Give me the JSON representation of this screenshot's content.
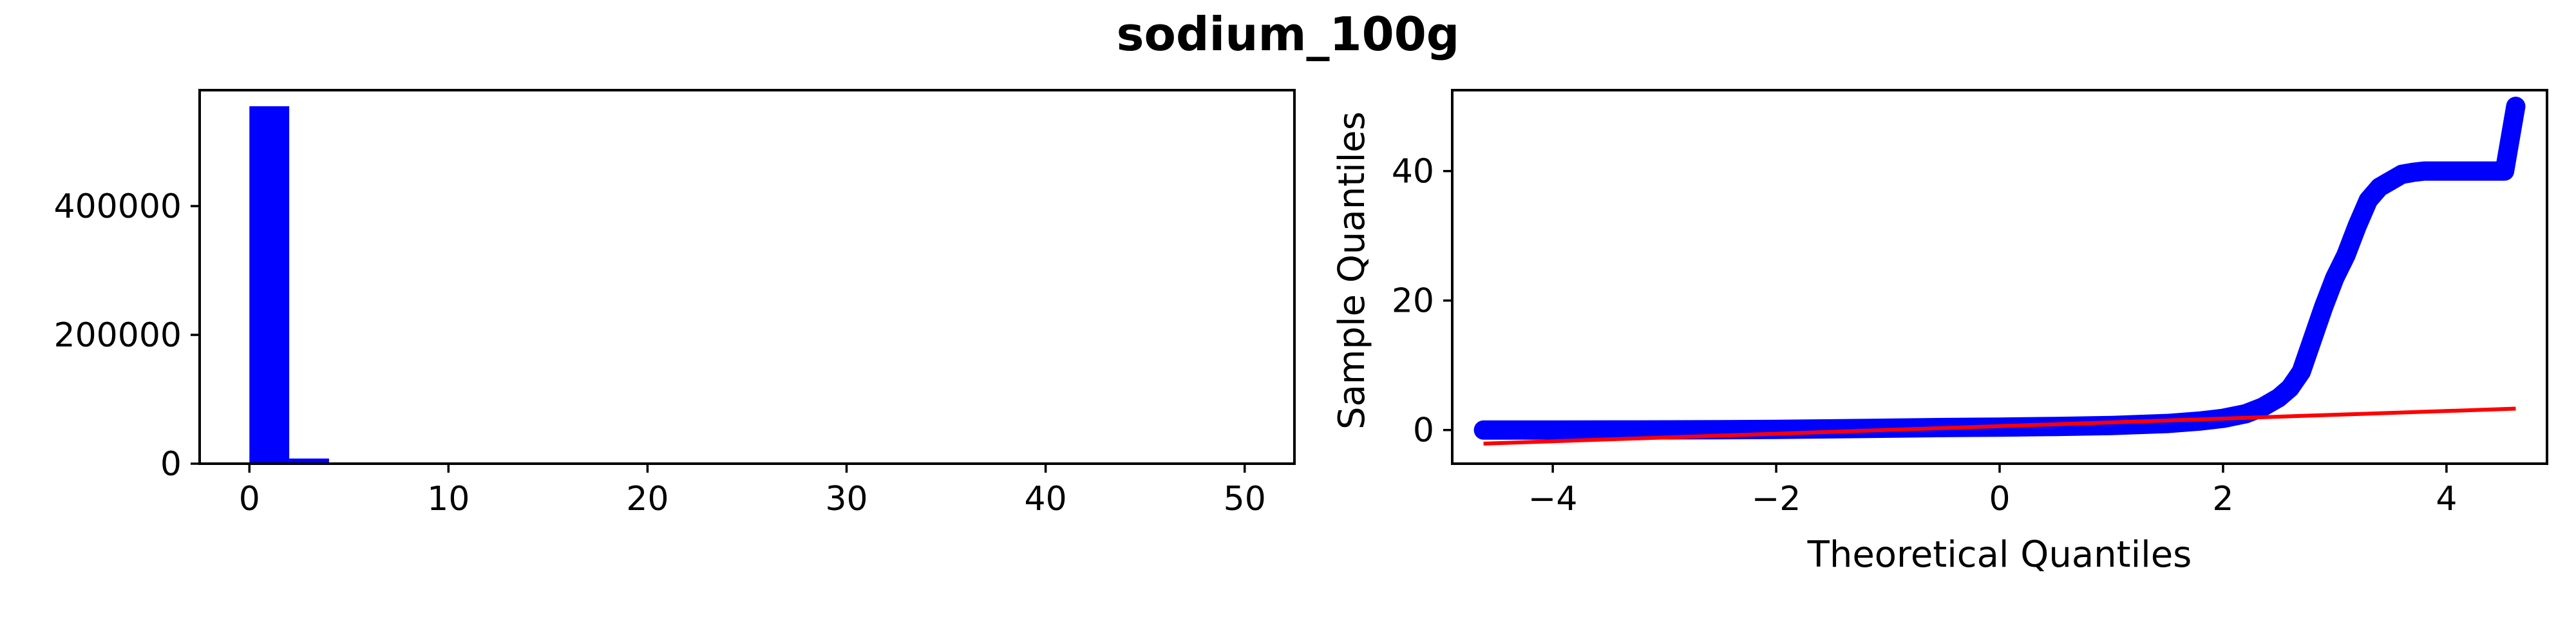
{
  "figure_title": "sodium_100g",
  "colors": {
    "marks": "#0000ff",
    "fit_line": "#ff0000",
    "axes": "#000000",
    "background": "#ffffff"
  },
  "chart_data": [
    {
      "type": "bar",
      "subtype": "histogram",
      "title": "",
      "xlabel": "",
      "ylabel": "",
      "xlim": [
        -2.5,
        52.5
      ],
      "ylim": [
        0,
        580000
      ],
      "xticks": [
        0,
        10,
        20,
        30,
        40,
        50
      ],
      "yticks": [
        0,
        200000,
        400000
      ],
      "bin_edges": [
        0,
        2,
        4,
        6,
        8,
        10,
        12,
        14,
        16,
        18,
        20,
        22,
        24,
        26,
        28,
        30,
        32,
        34,
        36,
        38,
        40,
        42,
        44,
        46,
        48,
        50
      ],
      "values": [
        555000,
        8000,
        1500,
        600,
        300,
        200,
        150,
        120,
        100,
        80,
        60,
        50,
        50,
        40,
        40,
        30,
        30,
        30,
        40,
        60,
        150,
        20,
        10,
        5,
        5
      ],
      "grid": false,
      "legend": "none"
    },
    {
      "type": "scatter",
      "subtype": "qq-plot",
      "title": "",
      "xlabel": "Theoretical Quantiles",
      "ylabel": "Sample Quantiles",
      "xlim": [
        -4.9,
        4.9
      ],
      "ylim": [
        -5.2,
        52.5
      ],
      "xticks": [
        -4,
        -2,
        0,
        2,
        4
      ],
      "xtick_labels": [
        "−4",
        "−2",
        "0",
        "2",
        "4"
      ],
      "yticks": [
        0,
        20,
        40
      ],
      "marker": "open-circle",
      "points": [
        [
          -4.62,
          0.0
        ],
        [
          -4.45,
          0.0
        ],
        [
          -4.38,
          0.0
        ],
        [
          -4.3,
          0.0
        ],
        [
          -4.2,
          0.0
        ],
        [
          -4.0,
          0.0
        ],
        [
          -3.5,
          0.01
        ],
        [
          -3.0,
          0.02
        ],
        [
          -2.5,
          0.05
        ],
        [
          -2.0,
          0.1
        ],
        [
          -1.5,
          0.18
        ],
        [
          -1.0,
          0.28
        ],
        [
          -0.5,
          0.38
        ],
        [
          0.0,
          0.45
        ],
        [
          0.5,
          0.55
        ],
        [
          1.0,
          0.7
        ],
        [
          1.5,
          1.0
        ],
        [
          1.8,
          1.4
        ],
        [
          2.0,
          1.8
        ],
        [
          2.2,
          2.5
        ],
        [
          2.35,
          3.5
        ],
        [
          2.5,
          5.0
        ],
        [
          2.6,
          6.5
        ],
        [
          2.7,
          9.0
        ],
        [
          2.8,
          14.0
        ],
        [
          2.9,
          19.0
        ],
        [
          3.0,
          23.5
        ],
        [
          3.1,
          27.0
        ],
        [
          3.2,
          31.5
        ],
        [
          3.3,
          35.5
        ],
        [
          3.4,
          37.5
        ],
        [
          3.5,
          38.5
        ],
        [
          3.6,
          39.5
        ],
        [
          3.7,
          39.8
        ],
        [
          3.8,
          40.0
        ],
        [
          3.95,
          40.0
        ],
        [
          4.1,
          40.0
        ],
        [
          4.25,
          40.0
        ],
        [
          4.35,
          40.0
        ],
        [
          4.45,
          40.0
        ],
        [
          4.52,
          40.0
        ],
        [
          4.62,
          50.0
        ]
      ],
      "fit_line": {
        "x": [
          -4.62,
          4.62
        ],
        "y": [
          -2.1,
          3.3
        ]
      },
      "grid": false,
      "legend": "none"
    }
  ]
}
